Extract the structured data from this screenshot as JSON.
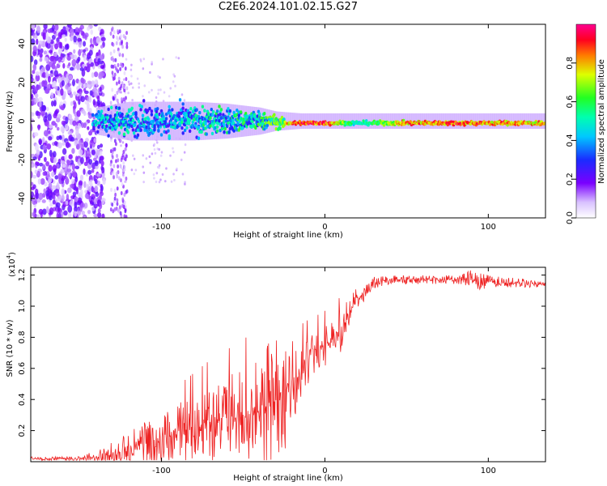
{
  "title": "C2E6.2024.101.02.15.G27",
  "colorbar": {
    "label": "Normalized spectral amplitude",
    "ticks": [
      "0.0",
      "0.2",
      "0.4",
      "0.6",
      "0.8"
    ],
    "range": [
      0,
      1
    ]
  },
  "chart_data": [
    {
      "type": "heatmap",
      "xlabel": "Height of straight line (km)",
      "ylabel": "Frequency (Hz)",
      "xlim": [
        -180,
        135
      ],
      "ylim": [
        -50,
        50
      ],
      "xticks": [
        "-100",
        "0",
        "100"
      ],
      "yticks": [
        "40",
        "20",
        "0",
        "-20",
        "-40"
      ],
      "grid": false,
      "description_of_pattern": null,
      "ridge": [
        {
          "x": -140,
          "halfwidth": 5,
          "peak": 0.45
        },
        {
          "x": -120,
          "halfwidth": 8,
          "peak": 0.5
        },
        {
          "x": -100,
          "halfwidth": 8,
          "peak": 0.45
        },
        {
          "x": -80,
          "halfwidth": 8,
          "peak": 0.5
        },
        {
          "x": -60,
          "halfwidth": 7,
          "peak": 0.55
        },
        {
          "x": -40,
          "halfwidth": 5,
          "peak": 0.6
        },
        {
          "x": -30,
          "halfwidth": 3,
          "peak": 0.8
        },
        {
          "x": -15,
          "halfwidth": 2,
          "peak": 0.95
        },
        {
          "x": 0,
          "halfwidth": 2,
          "peak": 1.0
        },
        {
          "x": 20,
          "halfwidth": 2,
          "peak": 0.5
        },
        {
          "x": 50,
          "halfwidth": 2,
          "peak": 0.9
        },
        {
          "x": 85,
          "halfwidth": 2,
          "peak": 0.95
        },
        {
          "x": 100,
          "halfwidth": 2,
          "peak": 0.9
        },
        {
          "x": 135,
          "halfwidth": 2,
          "peak": 0.85
        }
      ]
    },
    {
      "type": "line",
      "xlabel": "Height of straight line (km)",
      "ylabel": "SNR (10 * v/v)",
      "yscale_label": "(x10⁴)",
      "yscale_base": "(x10",
      "yscale_exp": "4",
      "xlim": [
        -180,
        135
      ],
      "ylim": [
        0,
        1.25
      ],
      "xticks": [
        "-100",
        "0",
        "100"
      ],
      "yticks": [
        "1.2",
        "1.0",
        "0.8",
        "0.6",
        "0.4",
        "0.2"
      ],
      "grid": false,
      "series_color": "#ee2222",
      "envelope_x": [
        -180,
        -150,
        -140,
        -130,
        -120,
        -110,
        -100,
        -90,
        -80,
        -70,
        -60,
        -50,
        -40,
        -35,
        -30,
        -25,
        -20,
        -15,
        -10,
        -5,
        0,
        5,
        10,
        15,
        20,
        25,
        30,
        40,
        60,
        80,
        90,
        95,
        100,
        120,
        135
      ],
      "envelope_mean": [
        0.02,
        0.02,
        0.03,
        0.05,
        0.08,
        0.12,
        0.15,
        0.18,
        0.22,
        0.26,
        0.28,
        0.3,
        0.32,
        0.36,
        0.4,
        0.45,
        0.5,
        0.55,
        0.65,
        0.72,
        0.75,
        0.78,
        0.85,
        0.95,
        1.05,
        1.1,
        1.15,
        1.17,
        1.17,
        1.17,
        1.18,
        1.14,
        1.16,
        1.15,
        1.14
      ],
      "envelope_spread": [
        0.01,
        0.01,
        0.03,
        0.06,
        0.08,
        0.1,
        0.12,
        0.14,
        0.16,
        0.18,
        0.2,
        0.22,
        0.25,
        0.3,
        0.3,
        0.28,
        0.2,
        0.15,
        0.12,
        0.1,
        0.1,
        0.1,
        0.1,
        0.08,
        0.06,
        0.04,
        0.03,
        0.02,
        0.02,
        0.02,
        0.04,
        0.06,
        0.03,
        0.02,
        0.02
      ]
    }
  ]
}
